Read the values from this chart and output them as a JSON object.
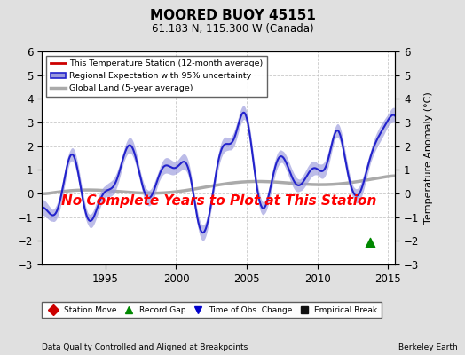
{
  "title": "MOORED BUOY 45151",
  "subtitle": "61.183 N, 115.300 W (Canada)",
  "xlabel_bottom": "Data Quality Controlled and Aligned at Breakpoints",
  "xlabel_right": "Berkeley Earth",
  "ylabel": "Temperature Anomaly (°C)",
  "annotation": "No Complete Years to Plot at This Station",
  "annotation_color": "#ff0000",
  "xlim": [
    1990.5,
    2015.5
  ],
  "ylim": [
    -3.0,
    6.0
  ],
  "yticks": [
    -3,
    -2,
    -1,
    0,
    1,
    2,
    3,
    4,
    5,
    6
  ],
  "xticks": [
    1995,
    2000,
    2005,
    2010,
    2015
  ],
  "background_color": "#e0e0e0",
  "plot_bg_color": "#ffffff",
  "regional_color": "#2222cc",
  "regional_fill_color": "#9999dd",
  "station_color": "#cc0000",
  "global_color": "#aaaaaa",
  "record_gap_x": 2013.7,
  "record_gap_y": -2.05,
  "legend_items": [
    {
      "label": "This Temperature Station (12-month average)",
      "color": "#cc0000",
      "lw": 2
    },
    {
      "label": "Regional Expectation with 95% uncertainty",
      "color": "#2222cc",
      "fill": "#9999dd",
      "lw": 2
    },
    {
      "label": "Global Land (5-year average)",
      "color": "#aaaaaa",
      "lw": 3
    }
  ],
  "marker_legend": [
    {
      "label": "Station Move",
      "color": "#cc0000",
      "marker": "D"
    },
    {
      "label": "Record Gap",
      "color": "#008800",
      "marker": "^"
    },
    {
      "label": "Time of Obs. Change",
      "color": "#0000cc",
      "marker": "v"
    },
    {
      "label": "Empirical Break",
      "color": "#111111",
      "marker": "s"
    }
  ]
}
